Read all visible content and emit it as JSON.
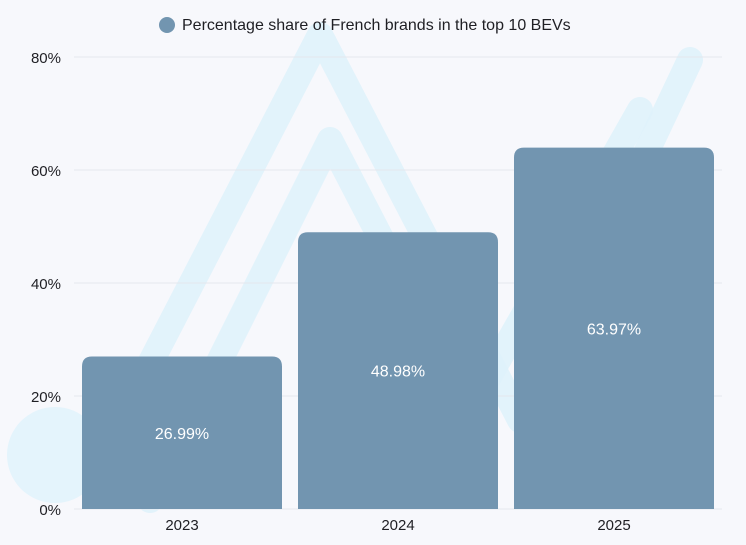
{
  "colors": {
    "background": "#f7f8fc",
    "bar": "#7295b0",
    "bar_label": "#ffffff",
    "legend_marker": "#7295b0",
    "grid": "#e4e7ee",
    "text": "#1f1f24",
    "decor": "#dff2fb"
  },
  "chart_data": {
    "type": "bar",
    "title": "",
    "xlabel": "",
    "ylabel": "",
    "categories": [
      "2023",
      "2024",
      "2025"
    ],
    "series": [
      {
        "name": "Percentage share of French brands in the top 10 BEVs",
        "values": [
          26.99,
          48.98,
          63.97
        ]
      }
    ],
    "data_labels": [
      "26.99%",
      "48.98%",
      "63.97%"
    ],
    "ylim": [
      0,
      80
    ],
    "yticks": [
      0,
      20,
      40,
      60,
      80
    ],
    "ytick_labels": [
      "0%",
      "20%",
      "40%",
      "60%",
      "80%"
    ],
    "grid": true,
    "legend_position": "top-center"
  }
}
